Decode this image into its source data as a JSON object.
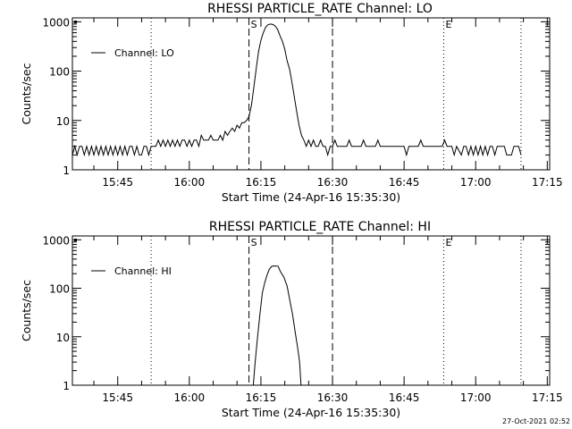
{
  "footer": {
    "timestamp": "27-Oct-2021 02:52"
  },
  "colors": {
    "background": "#ffffff",
    "foreground": "#000000"
  },
  "chart_data": [
    {
      "type": "line",
      "title": "RHESSI PARTICLE_RATE Channel: LO",
      "xlabel": "Start Time (24-Apr-16 15:35:30)",
      "ylabel": "Counts/sec",
      "yscale": "log",
      "ylim": [
        1,
        1200
      ],
      "x_units": "minutes after 15:00",
      "xlim": [
        35.5,
        135.5
      ],
      "xticks": [
        {
          "v": 45,
          "label": "15:45"
        },
        {
          "v": 60,
          "label": "16:00"
        },
        {
          "v": 75,
          "label": "16:15"
        },
        {
          "v": 90,
          "label": "16:30"
        },
        {
          "v": 105,
          "label": "16:45"
        },
        {
          "v": 120,
          "label": "17:00"
        },
        {
          "v": 135,
          "label": "17:15"
        }
      ],
      "yticks": [
        {
          "v": 1,
          "label": "1"
        },
        {
          "v": 10,
          "label": "10"
        },
        {
          "v": 100,
          "label": "100"
        },
        {
          "v": 1000,
          "label": "1000"
        }
      ],
      "legend": {
        "label": "Channel: LO",
        "position": "top-left"
      },
      "markers": [
        {
          "x": 52,
          "style": "dotted",
          "label": ""
        },
        {
          "x": 72.5,
          "style": "dashed",
          "label": "S"
        },
        {
          "x": 90,
          "style": "dashed",
          "label": ""
        },
        {
          "x": 113.3,
          "style": "dotted",
          "label": "E"
        },
        {
          "x": 129.5,
          "style": "dotted",
          "label": ""
        }
      ],
      "series": [
        {
          "name": "Channel: LO",
          "points": [
            [
              35.5,
              2
            ],
            [
              36,
              3
            ],
            [
              36.5,
              2
            ],
            [
              37,
              3
            ],
            [
              37.5,
              3
            ],
            [
              38,
              2
            ],
            [
              38.5,
              3
            ],
            [
              39,
              2
            ],
            [
              39.5,
              3
            ],
            [
              40,
              2
            ],
            [
              40.5,
              3
            ],
            [
              41,
              2
            ],
            [
              41.5,
              3
            ],
            [
              42,
              2
            ],
            [
              42.5,
              3
            ],
            [
              43,
              2
            ],
            [
              43.5,
              3
            ],
            [
              44,
              2
            ],
            [
              44.5,
              3
            ],
            [
              45,
              2
            ],
            [
              45.5,
              3
            ],
            [
              46,
              2
            ],
            [
              46.5,
              3
            ],
            [
              47,
              2
            ],
            [
              47.5,
              3
            ],
            [
              48,
              3
            ],
            [
              48.5,
              2
            ],
            [
              49,
              3
            ],
            [
              49.5,
              2
            ],
            [
              50,
              2
            ],
            [
              50.5,
              3
            ],
            [
              51,
              3
            ],
            [
              51.5,
              2
            ],
            [
              52,
              3
            ],
            [
              53,
              3
            ],
            [
              53.5,
              4
            ],
            [
              54,
              3
            ],
            [
              54.5,
              4
            ],
            [
              55,
              3
            ],
            [
              55.5,
              4
            ],
            [
              56,
              3
            ],
            [
              56.5,
              4
            ],
            [
              57,
              3
            ],
            [
              57.5,
              4
            ],
            [
              58,
              3
            ],
            [
              58.5,
              4
            ],
            [
              59,
              4
            ],
            [
              59.5,
              3
            ],
            [
              60,
              4
            ],
            [
              60.5,
              3
            ],
            [
              61,
              4
            ],
            [
              61.5,
              4
            ],
            [
              62,
              3
            ],
            [
              62.5,
              5
            ],
            [
              63,
              4
            ],
            [
              64,
              4
            ],
            [
              64.5,
              5
            ],
            [
              65,
              4
            ],
            [
              66,
              4
            ],
            [
              66.5,
              5
            ],
            [
              67,
              4
            ],
            [
              67.5,
              6
            ],
            [
              68,
              5
            ],
            [
              68.5,
              6
            ],
            [
              69,
              7
            ],
            [
              69.5,
              6
            ],
            [
              70,
              8
            ],
            [
              70.5,
              7
            ],
            [
              71,
              9
            ],
            [
              71.5,
              9
            ],
            [
              72,
              10
            ],
            [
              72.5,
              12
            ],
            [
              73,
              20
            ],
            [
              73.5,
              45
            ],
            [
              74,
              110
            ],
            [
              74.5,
              250
            ],
            [
              75,
              420
            ],
            [
              75.5,
              600
            ],
            [
              76,
              780
            ],
            [
              76.5,
              870
            ],
            [
              77,
              900
            ],
            [
              77.5,
              880
            ],
            [
              78,
              820
            ],
            [
              78.5,
              700
            ],
            [
              79,
              520
            ],
            [
              79.5,
              400
            ],
            [
              80,
              280
            ],
            [
              80.5,
              160
            ],
            [
              81,
              110
            ],
            [
              81.5,
              60
            ],
            [
              82,
              30
            ],
            [
              82.5,
              15
            ],
            [
              83,
              8
            ],
            [
              83.5,
              5
            ],
            [
              84,
              4
            ],
            [
              84.5,
              3
            ],
            [
              85,
              4
            ],
            [
              85.5,
              3
            ],
            [
              86,
              4
            ],
            [
              86.5,
              3
            ],
            [
              87,
              3
            ],
            [
              87.5,
              4
            ],
            [
              88,
              3
            ],
            [
              88.5,
              3
            ],
            [
              89,
              2
            ],
            [
              89.5,
              3
            ],
            [
              90,
              3
            ],
            [
              90.5,
              4
            ],
            [
              91,
              3
            ],
            [
              93,
              3
            ],
            [
              93.5,
              4
            ],
            [
              94,
              3
            ],
            [
              96,
              3
            ],
            [
              96.5,
              4
            ],
            [
              97,
              3
            ],
            [
              99,
              3
            ],
            [
              99.5,
              4
            ],
            [
              100,
              3
            ],
            [
              105,
              3
            ],
            [
              105.5,
              2
            ],
            [
              106,
              3
            ],
            [
              108,
              3
            ],
            [
              108.5,
              4
            ],
            [
              109,
              3
            ],
            [
              113,
              3
            ],
            [
              113.5,
              4
            ],
            [
              114,
              3
            ],
            [
              115,
              3
            ],
            [
              115.5,
              2
            ],
            [
              116,
              3
            ],
            [
              117,
              2
            ],
            [
              117.5,
              3
            ],
            [
              118,
              3
            ],
            [
              118.5,
              2
            ],
            [
              119,
              3
            ],
            [
              119.5,
              2
            ],
            [
              120,
              3
            ],
            [
              120.5,
              2
            ],
            [
              121,
              3
            ],
            [
              121.5,
              2
            ],
            [
              122,
              3
            ],
            [
              122.5,
              2
            ],
            [
              123,
              3
            ],
            [
              123.5,
              3
            ],
            [
              124,
              2
            ],
            [
              124.5,
              3
            ],
            [
              125,
              3
            ],
            [
              125.5,
              3
            ],
            [
              126,
              3
            ],
            [
              126.5,
              2
            ],
            [
              127,
              2
            ],
            [
              127.5,
              2
            ],
            [
              128,
              3
            ],
            [
              129,
              3
            ],
            [
              129.5,
              2
            ]
          ]
        }
      ]
    },
    {
      "type": "line",
      "title": "RHESSI PARTICLE_RATE Channel: HI",
      "xlabel": "Start Time (24-Apr-16 15:35:30)",
      "ylabel": "Counts/sec",
      "yscale": "log",
      "ylim": [
        1,
        1200
      ],
      "x_units": "minutes after 15:00",
      "xlim": [
        35.5,
        135.5
      ],
      "xticks": [
        {
          "v": 45,
          "label": "15:45"
        },
        {
          "v": 60,
          "label": "16:00"
        },
        {
          "v": 75,
          "label": "16:15"
        },
        {
          "v": 90,
          "label": "16:30"
        },
        {
          "v": 105,
          "label": "16:45"
        },
        {
          "v": 120,
          "label": "17:00"
        },
        {
          "v": 135,
          "label": "17:15"
        }
      ],
      "yticks": [
        {
          "v": 1,
          "label": "1"
        },
        {
          "v": 10,
          "label": "10"
        },
        {
          "v": 100,
          "label": "100"
        },
        {
          "v": 1000,
          "label": "1000"
        }
      ],
      "legend": {
        "label": "Channel: HI",
        "position": "top-left"
      },
      "markers": [
        {
          "x": 52,
          "style": "dotted",
          "label": ""
        },
        {
          "x": 72.5,
          "style": "dashed",
          "label": "S"
        },
        {
          "x": 90,
          "style": "dashed",
          "label": ""
        },
        {
          "x": 113.3,
          "style": "dotted",
          "label": "E"
        },
        {
          "x": 129.5,
          "style": "dotted",
          "label": ""
        }
      ],
      "series": [
        {
          "name": "Channel: HI",
          "points": [
            [
              73.4,
              1
            ],
            [
              73.8,
              3
            ],
            [
              74.3,
              10
            ],
            [
              74.8,
              30
            ],
            [
              75.3,
              80
            ],
            [
              75.8,
              130
            ],
            [
              76.3,
              190
            ],
            [
              76.8,
              250
            ],
            [
              77.3,
              285
            ],
            [
              78,
              290
            ],
            [
              78.6,
              285
            ],
            [
              79.1,
              220
            ],
            [
              79.8,
              170
            ],
            [
              80.5,
              110
            ],
            [
              81,
              60
            ],
            [
              81.6,
              30
            ],
            [
              82.2,
              12
            ],
            [
              82.7,
              6
            ],
            [
              83.1,
              3
            ],
            [
              83.4,
              1
            ]
          ]
        }
      ]
    }
  ]
}
